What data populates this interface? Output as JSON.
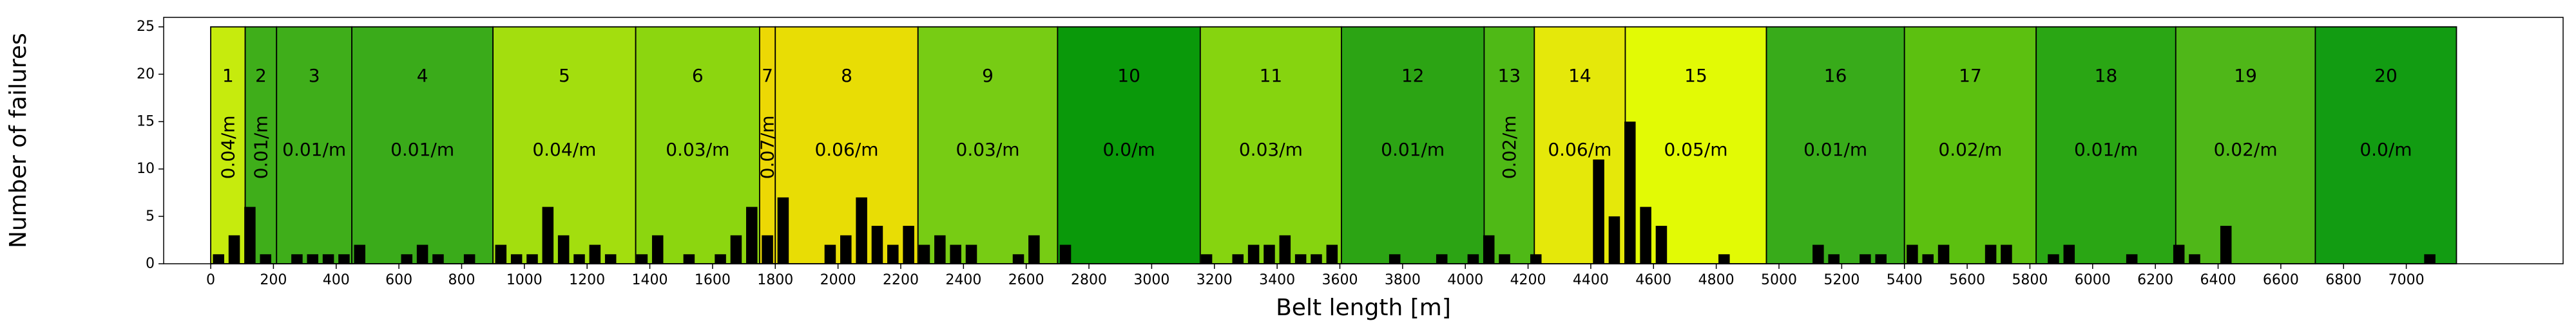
{
  "chart_data": {
    "type": "bar",
    "xlabel": "Belt length [m]",
    "ylabel": "Number of failures",
    "xlim": [
      -150,
      7500
    ],
    "ylim": [
      0,
      26
    ],
    "xticks": [
      0,
      200,
      400,
      600,
      800,
      1000,
      1200,
      1400,
      1600,
      1800,
      2000,
      2200,
      2400,
      2600,
      2800,
      3000,
      3200,
      3400,
      3600,
      3800,
      4000,
      4200,
      4400,
      4600,
      4800,
      5000,
      5200,
      5400,
      5600,
      5800,
      6000,
      6200,
      6400,
      6600,
      6800,
      7000
    ],
    "yticks": [
      0,
      5,
      10,
      15,
      20,
      25
    ],
    "grid": false,
    "bin_width": 50,
    "segments": [
      {
        "label": "1",
        "rate": "0.04/m",
        "start": 0,
        "end": 110,
        "color": "#c6eb0d",
        "rotated": true
      },
      {
        "label": "2",
        "rate": "0.01/m",
        "start": 110,
        "end": 210,
        "color": "#3fae1a",
        "rotated": true
      },
      {
        "label": "3",
        "rate": "0.01/m",
        "start": 210,
        "end": 450,
        "color": "#3fae1a",
        "rotated": false
      },
      {
        "label": "4",
        "rate": "0.01/m",
        "start": 450,
        "end": 900,
        "color": "#3aab1a",
        "rotated": false
      },
      {
        "label": "5",
        "rate": "0.04/m",
        "start": 900,
        "end": 1355,
        "color": "#a3de0e",
        "rotated": false
      },
      {
        "label": "6",
        "rate": "0.03/m",
        "start": 1355,
        "end": 1750,
        "color": "#8cd60f",
        "rotated": false
      },
      {
        "label": "7",
        "rate": "0.07/m",
        "start": 1750,
        "end": 1800,
        "color": "#ecd805",
        "rotated": true
      },
      {
        "label": "8",
        "rate": "0.06/m",
        "start": 1800,
        "end": 2255,
        "color": "#e8dd05",
        "rotated": false
      },
      {
        "label": "9",
        "rate": "0.03/m",
        "start": 2255,
        "end": 2700,
        "color": "#77cc14",
        "rotated": false
      },
      {
        "label": "10",
        "rate": "0.0/m",
        "start": 2700,
        "end": 3155,
        "color": "#0a990a",
        "rotated": false
      },
      {
        "label": "11",
        "rate": "0.03/m",
        "start": 3155,
        "end": 3605,
        "color": "#86d40f",
        "rotated": false
      },
      {
        "label": "12",
        "rate": "0.01/m",
        "start": 3605,
        "end": 4060,
        "color": "#2ca414",
        "rotated": false
      },
      {
        "label": "13",
        "rate": "0.02/m",
        "start": 4060,
        "end": 4220,
        "color": "#4fb916",
        "rotated": true
      },
      {
        "label": "14",
        "rate": "0.06/m",
        "start": 4220,
        "end": 4510,
        "color": "#e5e80a",
        "rotated": false
      },
      {
        "label": "15",
        "rate": "0.05/m",
        "start": 4510,
        "end": 4960,
        "color": "#e2fa05",
        "rotated": false
      },
      {
        "label": "16",
        "rate": "0.01/m",
        "start": 4960,
        "end": 5400,
        "color": "#38ab1a",
        "rotated": false
      },
      {
        "label": "17",
        "rate": "0.02/m",
        "start": 5400,
        "end": 5820,
        "color": "#5cc010",
        "rotated": false
      },
      {
        "label": "18",
        "rate": "0.01/m",
        "start": 5820,
        "end": 6265,
        "color": "#2aa614",
        "rotated": false
      },
      {
        "label": "19",
        "rate": "0.02/m",
        "start": 6265,
        "end": 6710,
        "color": "#4fb718",
        "rotated": false
      },
      {
        "label": "20",
        "rate": "0.0/m",
        "start": 6710,
        "end": 7160,
        "color": "#129c12",
        "rotated": false
      }
    ],
    "bars": {
      "x": [
        25,
        75,
        125,
        175,
        275,
        325,
        375,
        425,
        475,
        625,
        675,
        725,
        825,
        925,
        975,
        1025,
        1075,
        1125,
        1175,
        1225,
        1275,
        1375,
        1425,
        1525,
        1625,
        1675,
        1725,
        1775,
        1825,
        1975,
        2025,
        2075,
        2125,
        2175,
        2225,
        2275,
        2325,
        2375,
        2425,
        2575,
        2625,
        2725,
        3175,
        3275,
        3325,
        3375,
        3425,
        3475,
        3525,
        3575,
        3775,
        3925,
        4025,
        4075,
        4125,
        4225,
        4425,
        4475,
        4525,
        4575,
        4625,
        4825,
        5125,
        5175,
        5275,
        5325,
        5425,
        5475,
        5525,
        5675,
        5725,
        5875,
        5925,
        6125,
        6275,
        6325,
        6425,
        7075
      ],
      "values": [
        1,
        3,
        6,
        1,
        1,
        1,
        1,
        1,
        2,
        1,
        2,
        1,
        1,
        2,
        1,
        1,
        6,
        3,
        1,
        2,
        1,
        1,
        3,
        1,
        1,
        3,
        6,
        3,
        7,
        2,
        3,
        7,
        4,
        2,
        4,
        2,
        3,
        2,
        2,
        1,
        3,
        2,
        1,
        1,
        2,
        2,
        3,
        1,
        1,
        2,
        1,
        1,
        1,
        3,
        1,
        1,
        11,
        5,
        15,
        6,
        4,
        1,
        2,
        1,
        1,
        1,
        2,
        1,
        2,
        2,
        2,
        1,
        2,
        1,
        2,
        1,
        4,
        1
      ],
      "color": "#000000"
    }
  }
}
